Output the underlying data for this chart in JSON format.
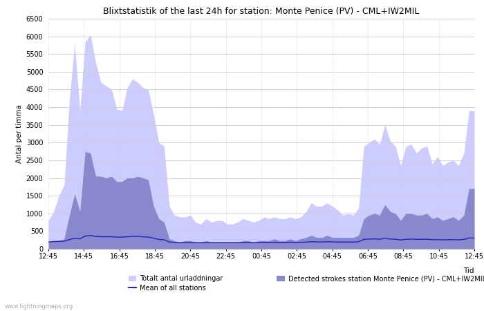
{
  "title": "Blixtstatistik of the last 24h for station: Monte Penice (PV) - CML+IW2MIL",
  "xlabel": "Tid",
  "ylabel": "Antal per timma",
  "xlabels": [
    "12:45",
    "14:45",
    "16:45",
    "18:45",
    "20:45",
    "22:45",
    "00:45",
    "02:45",
    "04:45",
    "06:45",
    "08:45",
    "10:45",
    "12:45"
  ],
  "ylim": [
    0,
    6500
  ],
  "yticks": [
    0,
    500,
    1000,
    1500,
    2000,
    2500,
    3000,
    3500,
    4000,
    4500,
    5000,
    5500,
    6000,
    6500
  ],
  "background_color": "#ffffff",
  "plot_bg_color": "#ffffff",
  "grid_color": "#cccccc",
  "watermark": "www.lightningmaps.org",
  "legend": {
    "total_label": "Totalt antal urladdningar",
    "detected_label": "Detected strokes station Monte Penice (PV) - CML+IW2MIL",
    "mean_label": "Mean of all stations"
  },
  "total_color": "#ccccff",
  "detected_color": "#8888cc",
  "mean_color": "#2222bb",
  "total_values": [
    800,
    1050,
    1500,
    1800,
    4200,
    5800,
    3900,
    5850,
    6050,
    5250,
    4700,
    4600,
    4500,
    3950,
    3900,
    4550,
    4800,
    4700,
    4550,
    4500,
    3800,
    3000,
    2900,
    1200,
    950,
    900,
    900,
    950,
    750,
    700,
    850,
    750,
    800,
    800,
    700,
    700,
    750,
    850,
    800,
    750,
    800,
    900,
    850,
    900,
    850,
    850,
    900,
    850,
    900,
    1050,
    1300,
    1200,
    1200,
    1300,
    1200,
    1100,
    950,
    1000,
    950,
    1150,
    2900,
    3000,
    3100,
    2950,
    3500,
    3050,
    2900,
    2350,
    2900,
    2950,
    2700,
    2850,
    2900,
    2400,
    2600,
    2350,
    2450,
    2500,
    2350,
    2700,
    3900,
    3900
  ],
  "detected_values": [
    180,
    220,
    230,
    280,
    950,
    1550,
    1050,
    2750,
    2700,
    2050,
    2050,
    2000,
    2050,
    1900,
    1900,
    2000,
    2000,
    2050,
    2000,
    1950,
    1200,
    850,
    750,
    280,
    230,
    180,
    230,
    230,
    180,
    180,
    230,
    180,
    180,
    180,
    180,
    180,
    180,
    230,
    230,
    180,
    230,
    230,
    230,
    280,
    230,
    230,
    280,
    230,
    280,
    320,
    380,
    320,
    320,
    380,
    320,
    320,
    320,
    320,
    320,
    380,
    850,
    950,
    1000,
    950,
    1250,
    1050,
    1000,
    800,
    1000,
    1000,
    950,
    950,
    1000,
    850,
    900,
    800,
    850,
    900,
    800,
    950,
    1700,
    1700
  ],
  "mean_values": [
    190,
    205,
    210,
    215,
    260,
    300,
    280,
    360,
    375,
    350,
    340,
    340,
    340,
    330,
    330,
    340,
    350,
    350,
    340,
    330,
    300,
    265,
    255,
    190,
    180,
    175,
    180,
    180,
    175,
    175,
    180,
    175,
    175,
    175,
    175,
    175,
    175,
    180,
    180,
    175,
    180,
    180,
    180,
    185,
    180,
    180,
    185,
    180,
    185,
    190,
    200,
    195,
    195,
    200,
    195,
    190,
    190,
    190,
    190,
    200,
    265,
    275,
    280,
    270,
    300,
    275,
    270,
    248,
    270,
    275,
    265,
    270,
    270,
    256,
    260,
    252,
    256,
    260,
    252,
    265,
    305,
    305
  ]
}
